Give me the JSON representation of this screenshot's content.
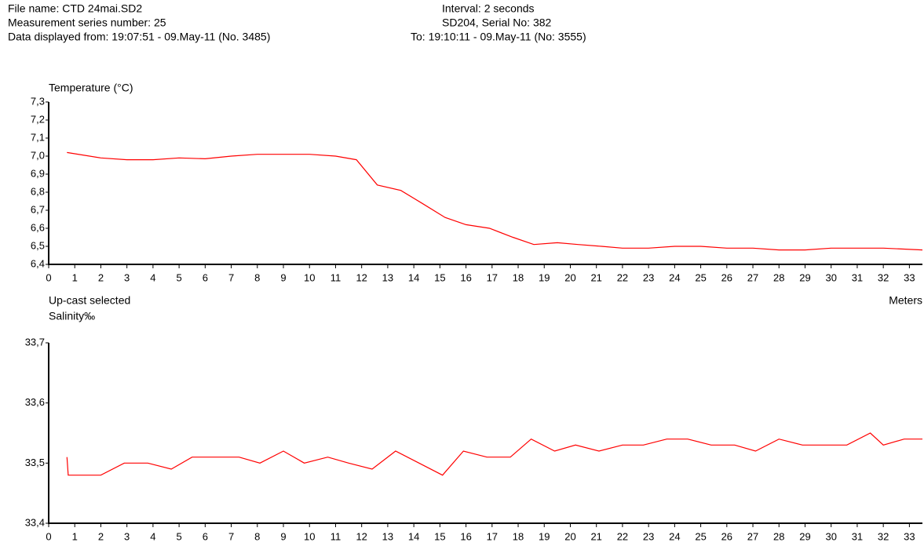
{
  "header": {
    "file_name": "File name: CTD 24mai.SD2",
    "series_number": "Measurement series number: 25",
    "displayed_from": "Data displayed from: 19:07:51 - 09.May-11 (No. 3485)",
    "interval": "Interval: 2 seconds",
    "serial": "SD204, Serial No: 382",
    "displayed_to": "To: 19:10:11 - 09.May-11 (No: 3555)"
  },
  "chart_data": [
    {
      "type": "line",
      "title": "Temperature (°C)",
      "color": "#ff0000",
      "annotation": "Up-cast selected",
      "xlabel": "Meters",
      "x": [
        0.7,
        2,
        3,
        4,
        5,
        6,
        7,
        8,
        9,
        10,
        11,
        11.8,
        12.6,
        13.5,
        14.3,
        15.2,
        16,
        16.9,
        17.8,
        18.6,
        19.5,
        20.3,
        21.2,
        22,
        23,
        24,
        25,
        26,
        27,
        28,
        29,
        30,
        31,
        32,
        33.5
      ],
      "values": [
        7.02,
        6.99,
        6.98,
        6.98,
        6.99,
        6.985,
        7.0,
        7.01,
        7.01,
        7.01,
        7.0,
        6.98,
        6.84,
        6.81,
        6.74,
        6.66,
        6.62,
        6.6,
        6.55,
        6.51,
        6.52,
        6.51,
        6.5,
        6.49,
        6.49,
        6.5,
        6.5,
        6.49,
        6.49,
        6.48,
        6.48,
        6.49,
        6.49,
        6.49,
        6.48
      ],
      "xlim": [
        0,
        33.5
      ],
      "xticks": [
        0,
        1,
        2,
        3,
        4,
        5,
        6,
        7,
        8,
        9,
        10,
        11,
        12,
        13,
        14,
        15,
        16,
        17,
        18,
        19,
        20,
        21,
        22,
        23,
        24,
        25,
        26,
        27,
        28,
        29,
        30,
        31,
        32,
        33
      ],
      "ylim": [
        6.4,
        7.3
      ],
      "yticks": [
        {
          "value": 6.4,
          "label": "6,4"
        },
        {
          "value": 6.5,
          "label": "6,5"
        },
        {
          "value": 6.6,
          "label": "6,6"
        },
        {
          "value": 6.7,
          "label": "6,7"
        },
        {
          "value": 6.8,
          "label": "6,8"
        },
        {
          "value": 6.9,
          "label": "6,9"
        },
        {
          "value": 7.0,
          "label": "7,0"
        },
        {
          "value": 7.1,
          "label": "7,1"
        },
        {
          "value": 7.2,
          "label": "7,2"
        },
        {
          "value": 7.3,
          "label": "7,3"
        }
      ]
    },
    {
      "type": "line",
      "title": "Salinity‰",
      "color": "#ff0000",
      "x": [
        0.7,
        0.75,
        2,
        2.9,
        3.8,
        4.7,
        5.5,
        6.4,
        7.3,
        8.1,
        9,
        9.8,
        10.7,
        11.5,
        12.4,
        13.3,
        14.2,
        15.1,
        15.9,
        16.8,
        17.7,
        18.5,
        19.4,
        20.2,
        21.1,
        22,
        22.8,
        23.7,
        24.5,
        25.4,
        26.3,
        27.1,
        28,
        28.9,
        29.7,
        30.6,
        31.5,
        32,
        32.8,
        33.5
      ],
      "values": [
        33.51,
        33.48,
        33.48,
        33.5,
        33.5,
        33.49,
        33.51,
        33.51,
        33.51,
        33.5,
        33.52,
        33.5,
        33.51,
        33.5,
        33.49,
        33.52,
        33.5,
        33.48,
        33.52,
        33.51,
        33.51,
        33.54,
        33.52,
        33.53,
        33.52,
        33.53,
        33.53,
        33.54,
        33.54,
        33.53,
        33.53,
        33.52,
        33.54,
        33.53,
        33.53,
        33.53,
        33.55,
        33.53,
        33.54,
        33.54
      ],
      "xlim": [
        0,
        33.5
      ],
      "xticks": [
        0,
        1,
        2,
        3,
        4,
        5,
        6,
        7,
        8,
        9,
        10,
        11,
        12,
        13,
        14,
        15,
        16,
        17,
        18,
        19,
        20,
        21,
        22,
        23,
        24,
        25,
        26,
        27,
        28,
        29,
        30,
        31,
        32,
        33
      ],
      "ylim": [
        33.4,
        33.7
      ],
      "yticks": [
        {
          "value": 33.4,
          "label": "33,4"
        },
        {
          "value": 33.5,
          "label": "33,5"
        },
        {
          "value": 33.6,
          "label": "33,6"
        },
        {
          "value": 33.7,
          "label": "33,7"
        }
      ]
    }
  ]
}
